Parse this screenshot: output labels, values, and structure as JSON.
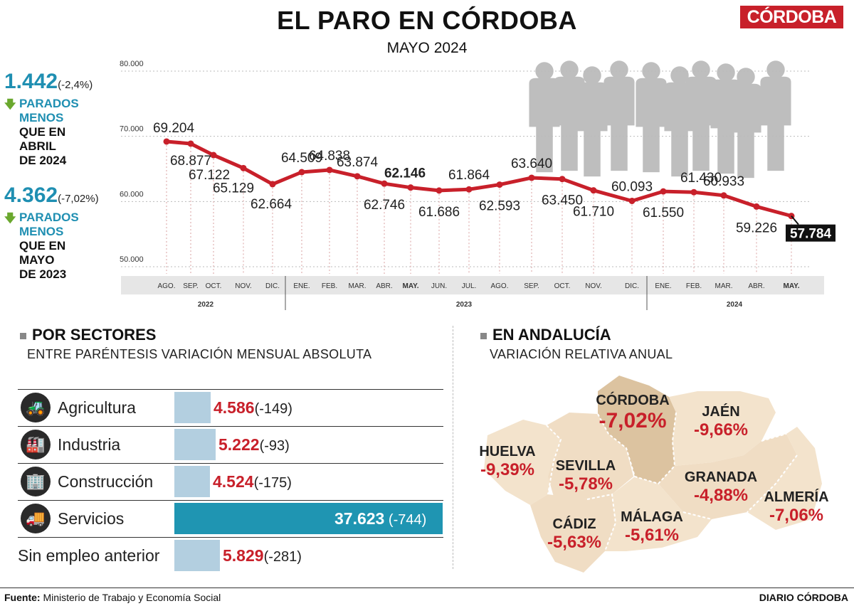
{
  "header": {
    "title": "EL PARO EN CÓRDOBA",
    "subtitle": "MAYO 2024",
    "logo": "CÓRDOBA"
  },
  "stats": [
    {
      "value": "1.442",
      "pct": "(-2,4%)",
      "line1": "PARADOS",
      "line2": "MENOS",
      "line3": "QUE EN",
      "line4": "ABRIL",
      "line5": "DE 2024"
    },
    {
      "value": "4.362",
      "pct": "(-7,02%)",
      "line1": "PARADOS",
      "line2": "MENOS",
      "line3": "QUE EN",
      "line4": "MAYO",
      "line5": "DE 2023"
    }
  ],
  "chart_data": {
    "type": "line",
    "series": [
      {
        "values": [
          69204,
          68877,
          67122,
          65129,
          62664,
          64509,
          64838,
          63874,
          62746,
          62146,
          61686,
          61864,
          62593,
          63640,
          63450,
          61710,
          60093,
          61550,
          61430,
          60933,
          59226,
          57784
        ]
      }
    ],
    "value_labels": [
      "69.204",
      "68.877",
      "67.122",
      "65.129",
      "62.664",
      "64.509",
      "64.838",
      "63.874",
      "62.746",
      "62.146",
      "61.686",
      "61.864",
      "62.593",
      "63.640",
      "63.450",
      "61.710",
      "60.093",
      "61.550",
      "61.430",
      "60.933",
      "59.226",
      "57.784"
    ],
    "categories": [
      "AGO.",
      "SEP.",
      "OCT.",
      "NOV.",
      "DIC.",
      "ENE.",
      "FEB.",
      "MAR.",
      "ABR.",
      "MAY.",
      "JUN.",
      "JUL.",
      "AGO.",
      "SEP.",
      "OCT.",
      "NOV.",
      "DIC.",
      "ENE.",
      "FEB.",
      "MAR.",
      "ABR.",
      "MAY."
    ],
    "years": [
      "2022",
      "2023",
      "2024"
    ],
    "y_ticks": [
      "80.000",
      "70.000",
      "60.000",
      "50.000"
    ],
    "ylim": [
      50000,
      80000
    ],
    "grid": true,
    "line_color": "#c8202a"
  },
  "sectors": {
    "title": "POR SECTORES",
    "subtitle": "ENTRE PARÉNTESIS VARIACIÓN MENSUAL ABSOLUTA",
    "items": [
      {
        "name": "Agricultura",
        "value": 4586,
        "label": "4.586",
        "diff": "(-149)",
        "icon": "tractor-icon"
      },
      {
        "name": "Industria",
        "value": 5222,
        "label": "5.222",
        "diff": "(-93)",
        "icon": "factory-icon"
      },
      {
        "name": "Construcción",
        "value": 4524,
        "label": "4.524",
        "diff": "(-175)",
        "icon": "buildings-icon"
      },
      {
        "name": "Servicios",
        "value": 37623,
        "label": "37.623",
        "diff": "(-744)",
        "icon": "van-icon"
      },
      {
        "name": "Sin empleo anterior",
        "value": 5829,
        "label": "5.829",
        "diff": "(-281)",
        "icon": ""
      }
    ],
    "bar_color": "#b3cfe0",
    "highlight_color": "#1f95b2"
  },
  "andalucia": {
    "title": "EN ANDALUCÍA",
    "subtitle": "VARIACIÓN RELATIVA ANUAL",
    "provinces": [
      {
        "name": "CÓRDOBA",
        "value": "-7,02%"
      },
      {
        "name": "JAÉN",
        "value": "-9,66%"
      },
      {
        "name": "HUELVA",
        "value": "-9,39%"
      },
      {
        "name": "SEVILLA",
        "value": "-5,78%"
      },
      {
        "name": "GRANADA",
        "value": "-4,88%"
      },
      {
        "name": "ALMERÍA",
        "value": "-7,06%"
      },
      {
        "name": "CÁDIZ",
        "value": "-5,63%"
      },
      {
        "name": "MÁLAGA",
        "value": "-5,61%"
      }
    ]
  },
  "footer": {
    "source_label": "Fuente:",
    "source": "Ministerio de Trabajo y Economía Social",
    "brand": "DIARIO CÓRDOBA"
  }
}
